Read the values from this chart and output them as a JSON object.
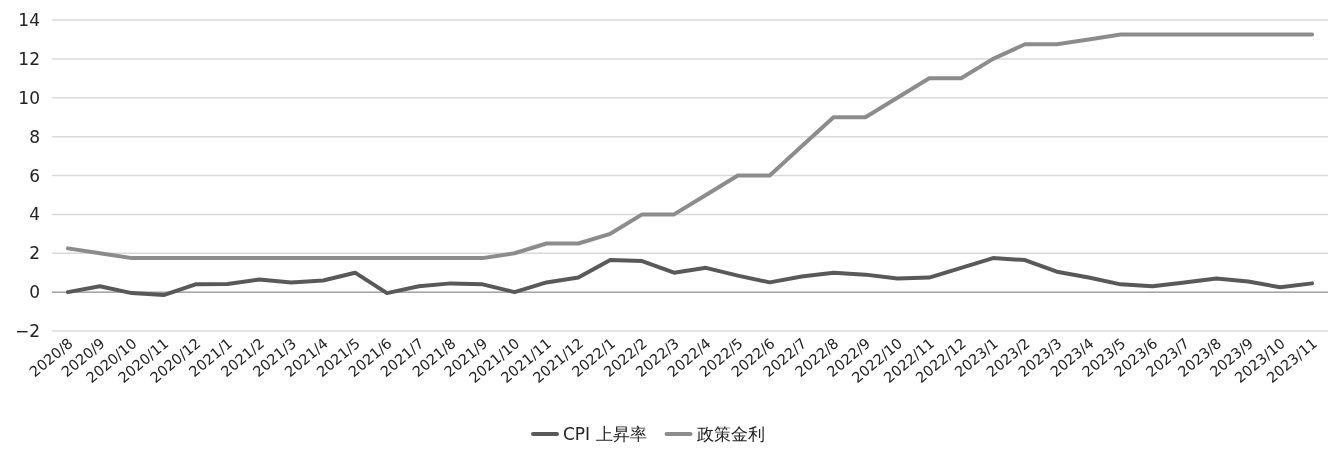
{
  "chart_data": {
    "type": "line",
    "categories": [
      "2020/8",
      "2020/9",
      "2020/10",
      "2020/11",
      "2020/12",
      "2021/1",
      "2021/2",
      "2021/3",
      "2021/4",
      "2021/5",
      "2021/6",
      "2021/7",
      "2021/8",
      "2021/9",
      "2021/10",
      "2021/11",
      "2021/12",
      "2022/1",
      "2022/2",
      "2022/3",
      "2022/4",
      "2022/5",
      "2022/6",
      "2022/7",
      "2022/8",
      "2022/9",
      "2022/10",
      "2022/11",
      "2022/12",
      "2023/1",
      "2023/2",
      "2023/3",
      "2023/4",
      "2023/5",
      "2023/6",
      "2023/7",
      "2023/8",
      "2023/9",
      "2023/10",
      "2023/11"
    ],
    "series": [
      {
        "name": "CPI 上昇率",
        "color": "#595959",
        "values": [
          0.0,
          0.3,
          -0.05,
          -0.15,
          0.4,
          0.42,
          0.65,
          0.5,
          0.6,
          1.0,
          -0.05,
          0.3,
          0.45,
          0.4,
          0.0,
          0.5,
          0.75,
          1.65,
          1.6,
          1.0,
          1.25,
          0.85,
          0.5,
          0.8,
          1.0,
          0.9,
          0.7,
          0.75,
          1.25,
          1.75,
          1.65,
          1.05,
          0.75,
          0.4,
          0.3,
          0.5,
          0.7,
          0.55,
          0.25,
          0.45
        ]
      },
      {
        "name": "政策金利",
        "color": "#8c8c8c",
        "values": [
          2.25,
          2.0,
          1.75,
          1.75,
          1.75,
          1.75,
          1.75,
          1.75,
          1.75,
          1.75,
          1.75,
          1.75,
          1.75,
          1.75,
          2.0,
          2.5,
          2.5,
          3.0,
          4.0,
          4.0,
          5.0,
          6.0,
          6.0,
          7.5,
          9.0,
          9.0,
          10.0,
          11.0,
          11.0,
          12.0,
          12.75,
          12.75,
          13.0,
          13.25,
          13.25,
          13.25,
          13.25,
          13.25,
          13.25,
          13.25
        ]
      }
    ],
    "ylim": [
      -2,
      14
    ],
    "yticks": [
      -2,
      0,
      2,
      4,
      6,
      8,
      10,
      12,
      14
    ],
    "grid": "y",
    "legend": "bottom",
    "marker": "none",
    "line_style": "solid"
  }
}
